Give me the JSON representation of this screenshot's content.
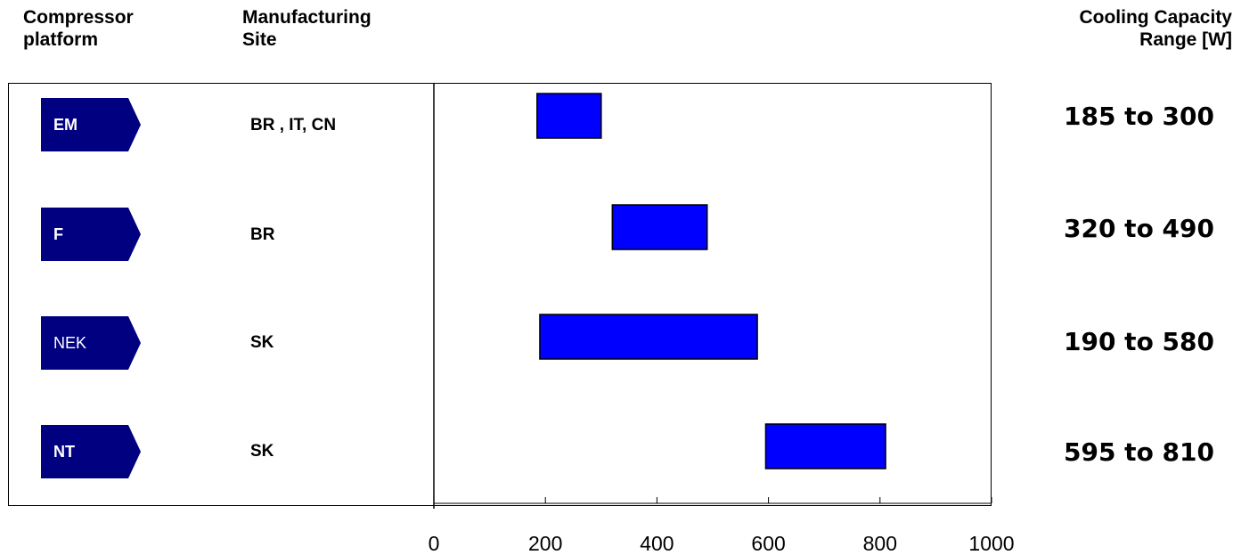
{
  "headers": {
    "platform": [
      "Compressor",
      "platform"
    ],
    "site": [
      "Manufacturing",
      "Site"
    ],
    "range": [
      "Cooling Capacity",
      "Range [W]"
    ]
  },
  "colors": {
    "tag": "#000080",
    "bar": "#0000ff",
    "bar_stroke": "#000000"
  },
  "rows": [
    {
      "platform": "EM",
      "bold": true,
      "site": "BR , IT, CN",
      "range_text": "185 to 300"
    },
    {
      "platform": "F",
      "bold": true,
      "site": "BR",
      "range_text": "320 to 490"
    },
    {
      "platform": "NEK",
      "bold": false,
      "site": "SK",
      "range_text": "190 to 580"
    },
    {
      "platform": "NT",
      "bold": true,
      "site": "SK",
      "range_text": "595 to 810"
    }
  ],
  "chart_data": {
    "type": "bar",
    "orientation": "horizontal-range",
    "categories": [
      "EM",
      "F",
      "NEK",
      "NT"
    ],
    "series": [
      {
        "ranges": [
          [
            185,
            300
          ],
          [
            320,
            490
          ],
          [
            190,
            580
          ],
          [
            595,
            810
          ]
        ]
      }
    ],
    "xlim": [
      0,
      1000
    ],
    "xticks": [
      "0",
      "200",
      "400",
      "600",
      "800",
      "1000"
    ],
    "grid": false
  }
}
